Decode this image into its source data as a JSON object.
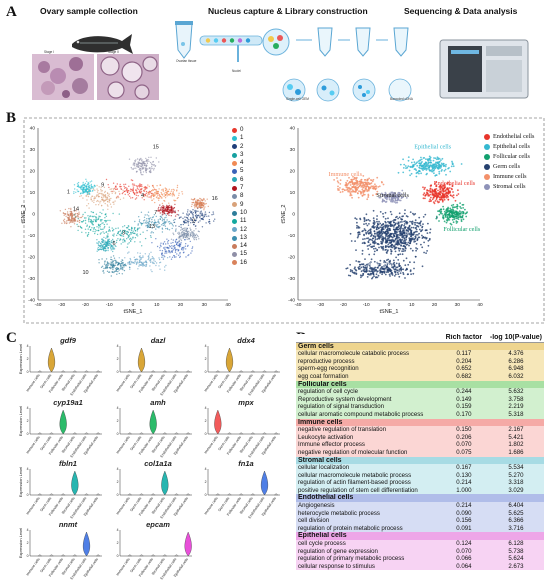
{
  "panels": {
    "a": {
      "letter": "A",
      "title_left": "Ovary sample collection",
      "title_mid": "Nucleus capture & Library construction",
      "title_right": "Sequencing & Data analysis"
    },
    "b": {
      "letter": "B",
      "left_axis_x": "tSNE_1",
      "left_axis_y": "tSNE_2",
      "right_axis_x": "tSNE_1",
      "right_axis_y": "tSNE_2",
      "x_ticks": [
        "-40",
        "-30",
        "-20",
        "-10",
        "0",
        "10",
        "20",
        "30",
        "40"
      ],
      "y_ticks": [
        "40",
        "30",
        "20",
        "10",
        "0",
        "-10",
        "-20",
        "-30",
        "-40"
      ],
      "cluster_legend": [
        {
          "label": "0",
          "color": "#e8382c"
        },
        {
          "label": "1",
          "color": "#2dbfd0"
        },
        {
          "label": "2",
          "color": "#1f3f7a"
        },
        {
          "label": "3",
          "color": "#16a0a0"
        },
        {
          "label": "4",
          "color": "#f08a55"
        },
        {
          "label": "5",
          "color": "#3a62b8"
        },
        {
          "label": "6",
          "color": "#2aa7b7"
        },
        {
          "label": "7",
          "color": "#b0141e"
        },
        {
          "label": "8",
          "color": "#7a8ca8"
        },
        {
          "label": "9",
          "color": "#d8a27a"
        },
        {
          "label": "10",
          "color": "#2e7d9a"
        },
        {
          "label": "11",
          "color": "#13a89e"
        },
        {
          "label": "12",
          "color": "#6aa6c8"
        },
        {
          "label": "13",
          "color": "#3d8eae"
        },
        {
          "label": "14",
          "color": "#c97c5d"
        },
        {
          "label": "15",
          "color": "#8f8fa7"
        },
        {
          "label": "16",
          "color": "#d9825b"
        }
      ],
      "cluster_plot_labels": [
        "15",
        "14",
        "16",
        "1",
        "10",
        "9",
        "4",
        "2",
        "7",
        "6",
        "13",
        "3"
      ],
      "celltype_legend": [
        {
          "label": "Endothelial cells",
          "color": "#e8352b"
        },
        {
          "label": "Epithelial cells",
          "color": "#35b8d0"
        },
        {
          "label": "Follicular cells",
          "color": "#12a06e"
        },
        {
          "label": "Germ cells",
          "color": "#26416f"
        },
        {
          "label": "Immune cells",
          "color": "#f3906a"
        },
        {
          "label": "Stromal cells",
          "color": "#8e92b8"
        }
      ],
      "celltype_plot_labels": [
        {
          "label": "Epithelial cells",
          "color": "#35b8d0"
        },
        {
          "label": "Immune cells",
          "color": "#f3906a"
        },
        {
          "label": "Endothelial cells",
          "color": "#e8352b"
        },
        {
          "label": "Stromal cells",
          "color": "#222222"
        },
        {
          "label": "Follicular cells",
          "color": "#12a06e"
        },
        {
          "label": "Germ cells",
          "color": "#ffffff"
        }
      ]
    },
    "c": {
      "letter": "C",
      "ylabel": "Expression Level",
      "categories": [
        "Immune cells",
        "Germ cells",
        "Follicular cells",
        "Stromal cells",
        "Endothelial cells",
        "Epithelial cells"
      ],
      "genes": [
        {
          "name": "gdf9",
          "color": "#d9a637",
          "peak": 1
        },
        {
          "name": "dazl",
          "color": "#d9a637",
          "peak": 1
        },
        {
          "name": "ddx4",
          "color": "#d9a637",
          "peak": 1
        },
        {
          "name": "cyp19a1",
          "color": "#2bbb6a",
          "peak": 2
        },
        {
          "name": "amh",
          "color": "#2bbb6a",
          "peak": 2
        },
        {
          "name": "mpx",
          "color": "#f25b5b",
          "peak": 0
        },
        {
          "name": "fbln1",
          "color": "#27b5b0",
          "peak": 3
        },
        {
          "name": "col1a1a",
          "color": "#27b5b0",
          "peak": 3
        },
        {
          "name": "fn1a",
          "color": "#4f7fe6",
          "peak": 4
        },
        {
          "name": "nnmt",
          "color": "#4f7fe6",
          "peak": 4
        },
        {
          "name": "epcam",
          "color": "#e84fd9",
          "peak": 5
        }
      ]
    },
    "d": {
      "letter": "D",
      "header": {
        "term": "",
        "rich": "Rich factor",
        "logp": "-log 10(P-value)"
      },
      "groups": [
        {
          "name": "Germ cells",
          "color": "#f6e7b9",
          "hcolor": "#eed58f",
          "rows": [
            [
              "cellular macromolecule catabolic process",
              "0.117",
              "4.376"
            ],
            [
              "reproductive process",
              "0.204",
              "6.286"
            ],
            [
              "sperm-egg recognition",
              "0.652",
              "6.948"
            ],
            [
              "egg coat formation",
              "0.682",
              "6.032"
            ]
          ]
        },
        {
          "name": "Follicular cells",
          "color": "#d2f0cf",
          "hcolor": "#a8e0a3",
          "rows": [
            [
              "regulation of cell cycle",
              "0.244",
              "5.632"
            ],
            [
              "Reproductive system development",
              "0.149",
              "3.758"
            ],
            [
              "regulation of signal transduction",
              "0.159",
              "2.219"
            ],
            [
              "cellular aromatic compound metabolic process",
              "0.170",
              "5.318"
            ]
          ]
        },
        {
          "name": "Immune cells",
          "color": "#fbd6d4",
          "hcolor": "#f5aaa6",
          "rows": [
            [
              "negative regulation of translation",
              "0.150",
              "2.167"
            ],
            [
              "Leukocyte activation",
              "0.206",
              "5.421"
            ],
            [
              "Immune effector process",
              "0.070",
              "1.802"
            ],
            [
              "negative regulation of molecular function",
              "0.075",
              "1.686"
            ]
          ]
        },
        {
          "name": "Stromal cells",
          "color": "#d3eef2",
          "hcolor": "#a7dbe4",
          "rows": [
            [
              "cellular localization",
              "0.167",
              "5.534"
            ],
            [
              "cellular macromolecule metabolic process",
              "0.130",
              "5.270"
            ],
            [
              "regulation of actin filament-based process",
              "0.214",
              "3.318"
            ],
            [
              "positive regulation of stem cell differentiation",
              "1.000",
              "3.029"
            ]
          ]
        },
        {
          "name": "Endothelial cells",
          "color": "#d6ddf4",
          "hcolor": "#b0bde9",
          "rows": [
            [
              "Angiogenesis",
              "0.214",
              "6.404"
            ],
            [
              "heterocycle metabolic process",
              "0.090",
              "5.625"
            ],
            [
              "cell division",
              "0.156",
              "6.366"
            ],
            [
              "regulation of protein metabolic process",
              "0.091",
              "3.716"
            ]
          ]
        },
        {
          "name": "Epithelial cells",
          "color": "#f7d3f3",
          "hcolor": "#eea6e8",
          "rows": [
            [
              "cell cycle process",
              "0.124",
              "6.128"
            ],
            [
              "regulation of gene expression",
              "0.070",
              "5.738"
            ],
            [
              "regulation of primary metabolic process",
              "0.066",
              "5.624"
            ],
            [
              "cellular response to stimulus",
              "0.064",
              "2.673"
            ]
          ]
        }
      ]
    }
  }
}
